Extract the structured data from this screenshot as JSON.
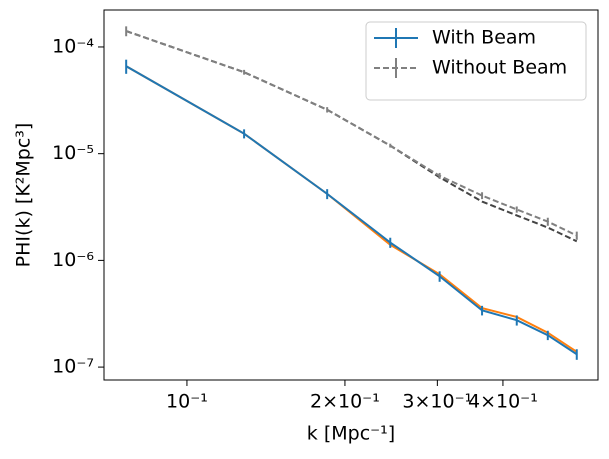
{
  "chart_data": {
    "type": "line",
    "xlabel": "k [Mpc⁻¹]",
    "ylabel": "PHI(k) [K²Mpc³]",
    "xscale": "log",
    "yscale": "log",
    "x": [
      0.0766,
      0.1285,
      0.185,
      0.244,
      0.303,
      0.365,
      0.425,
      0.487,
      0.553
    ],
    "series": [
      {
        "name": "With Beam",
        "color": "#1f77b4",
        "linestyle": "solid",
        "values": [
          6.6e-05,
          1.54e-05,
          4.2e-06,
          1.47e-06,
          7.1e-07,
          3.4e-07,
          2.75e-07,
          1.99e-07,
          1.32e-07
        ],
        "errors": [
          1e-05,
          1.5e-06,
          4.5e-07,
          1.6e-07,
          8e-08,
          3.5e-08,
          3e-08,
          2e-08,
          1.5e-08
        ]
      },
      {
        "color": "#ff7f0e",
        "linestyle": "solid",
        "values": [
          6.6e-05,
          1.54e-05,
          4.2e-06,
          1.4e-06,
          7.4e-07,
          3.57e-07,
          2.95e-07,
          2.1e-07,
          1.39e-07
        ]
      },
      {
        "name": "Without Beam",
        "color": "#808080",
        "linestyle": "dashed",
        "values": [
          0.000141,
          5.8e-05,
          2.58e-05,
          1.19e-05,
          6.2e-06,
          4.05e-06,
          3e-06,
          2.31e-06,
          1.71e-06
        ],
        "errors": [
          1.5e-05,
          3e-06,
          1.5e-06,
          5e-07,
          4e-07,
          3e-07,
          2e-07,
          2e-07,
          1.5e-07
        ]
      },
      {
        "color": "#444444",
        "linestyle": "dashed",
        "values": [
          0.000141,
          5.8e-05,
          2.58e-05,
          1.19e-05,
          6e-06,
          3.56e-06,
          2.64e-06,
          2.03e-06,
          1.51e-06
        ]
      }
    ],
    "xlim": [
      0.0695,
      0.607
    ],
    "ylim": [
      7.57e-08,
      0.000222
    ],
    "xticks": [
      {
        "value": 0.1,
        "label": "10⁻¹"
      },
      {
        "value": 0.2,
        "label": "2×10⁻¹"
      },
      {
        "value": 0.3,
        "label": "3×10⁻¹"
      },
      {
        "value": 0.4,
        "label": "4×10⁻¹"
      }
    ],
    "yticks": [
      {
        "value": 1e-07,
        "label": "10⁻⁷"
      },
      {
        "value": 1e-06,
        "label": "10⁻⁶"
      },
      {
        "value": 1e-05,
        "label": "10⁻⁵"
      },
      {
        "value": 0.0001,
        "label": "10⁻⁴"
      }
    ],
    "legend": "upper right"
  }
}
